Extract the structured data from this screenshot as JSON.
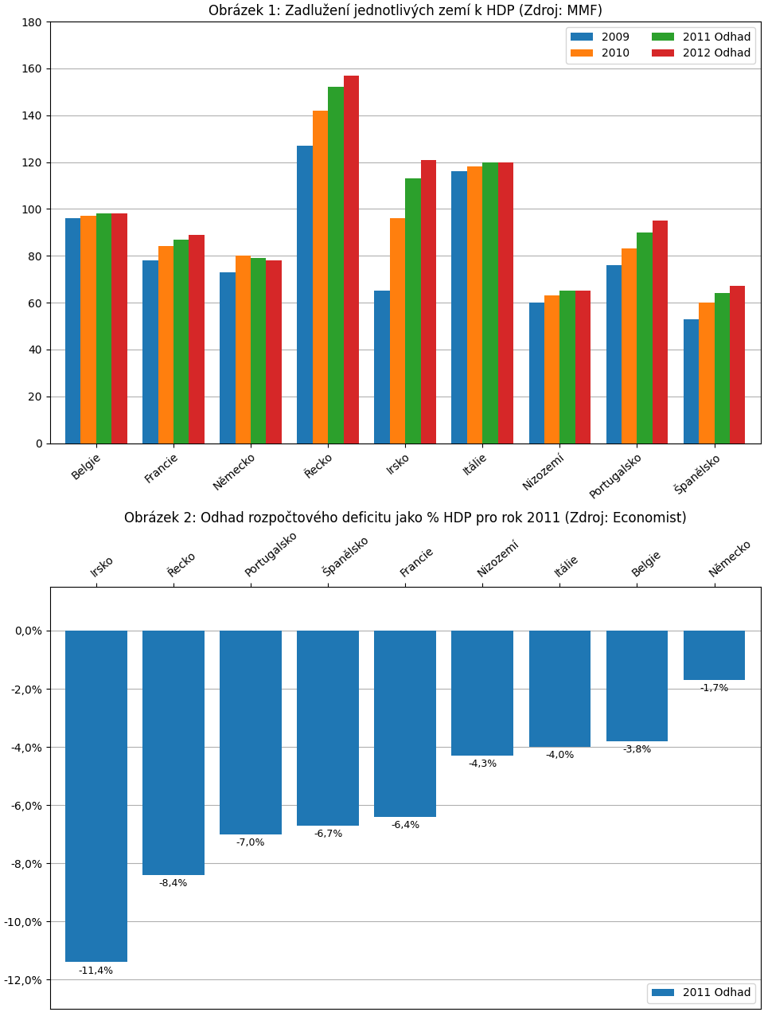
{
  "chart_data": [
    {
      "type": "bar",
      "title": "Obrázek 1: Zadlužení jednotlivých zemí k HDP (Zdroj: MMF)",
      "categories": [
        "Belgie",
        "Francie",
        "Německo",
        "Řecko",
        "Irsko",
        "Itálie",
        "Nizozemí",
        "Portugalsko",
        "Španělsko"
      ],
      "series": [
        {
          "name": "2009",
          "values": [
            96,
            78,
            73,
            127,
            65,
            116,
            60,
            76,
            53
          ]
        },
        {
          "name": "2010",
          "values": [
            97,
            84,
            80,
            142,
            96,
            118,
            63,
            83,
            60
          ]
        },
        {
          "name": "2011 Odhad",
          "values": [
            98,
            87,
            79,
            152,
            113,
            120,
            65,
            90,
            64
          ]
        },
        {
          "name": "2012 Odhad",
          "values": [
            98,
            89,
            78,
            157,
            121,
            120,
            65,
            95,
            67
          ]
        }
      ],
      "ylim": [
        0,
        180
      ],
      "yticks": [
        0,
        20,
        40,
        60,
        80,
        100,
        120,
        140,
        160,
        180
      ],
      "grid": true,
      "legend": "upper right"
    },
    {
      "type": "bar",
      "title": "Obrázek 2: Odhad rozpočtového deficitu jako % HDP pro rok 2011 (Zdroj: Economist)",
      "categories": [
        "Irsko",
        "Řecko",
        "Portugalsko",
        "Španělsko",
        "Francie",
        "Nizozemí",
        "Itálie",
        "Belgie",
        "Německo"
      ],
      "series": [
        {
          "name": "2011 Odhad",
          "values": [
            -11.4,
            -8.4,
            -7.0,
            -6.7,
            -6.4,
            -4.3,
            -4.0,
            -3.8,
            -1.7
          ],
          "value_labels": [
            "-11,4%",
            "-8,4%",
            "-7,0%",
            "-6,7%",
            "-6,4%",
            "-4,3%",
            "-4,0%",
            "-3,8%",
            "-1,7%"
          ]
        }
      ],
      "ylim": [
        -13.0,
        1.5
      ],
      "yticks": [
        {
          "value": 0.0,
          "label": "0,0%"
        },
        {
          "value": -2.0,
          "label": "-2,0%"
        },
        {
          "value": -4.0,
          "label": "-4,0%"
        },
        {
          "value": -6.0,
          "label": "-6,0%"
        },
        {
          "value": -8.0,
          "label": "-8,0%"
        },
        {
          "value": -10.0,
          "label": "-10,0%"
        },
        {
          "value": -12.0,
          "label": "-12,0%"
        }
      ],
      "grid": true,
      "data_labels": true,
      "legend": "lower right"
    }
  ]
}
